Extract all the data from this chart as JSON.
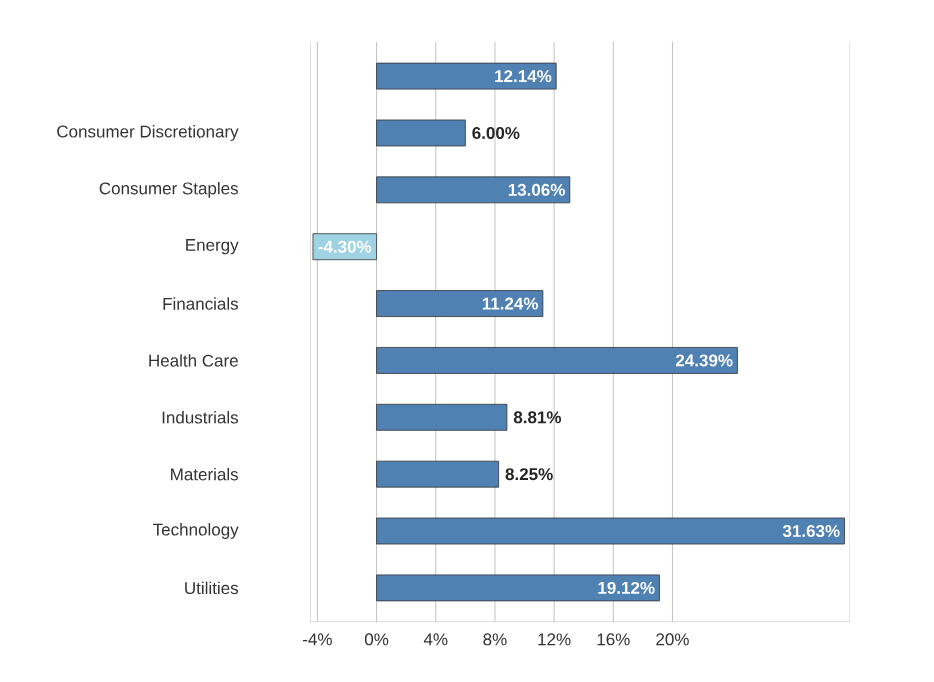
{
  "chart_data": {
    "type": "bar",
    "orientation": "horizontal",
    "categories": [
      null,
      "Consumer Discretionary",
      "Consumer Staples",
      "Energy",
      "Financials",
      "Health Care",
      "Industrials",
      "Materials",
      "Technology",
      "Utilities"
    ],
    "values": [
      12.14,
      6.0,
      13.06,
      -4.3,
      11.24,
      24.39,
      8.81,
      8.25,
      31.63,
      19.12
    ],
    "value_labels": [
      "12.14%",
      "6.00%",
      "13.06%",
      "-4.30%",
      "11.24%",
      "24.39%",
      "8.81%",
      "8.25%",
      "31.63%",
      "19.12%"
    ],
    "colors": [
      "#4f81b3",
      "#4f81b3",
      "#4f81b3",
      "#9fd3e3",
      "#4f81b3",
      "#4f81b3",
      "#4f81b3",
      "#4f81b3",
      "#4f81b3",
      "#4f81b3"
    ],
    "xlim": [
      -4.5,
      32
    ],
    "xticks": [
      {
        "value": -4,
        "label": "-4%"
      },
      {
        "value": 0,
        "label": "0%"
      },
      {
        "value": 4,
        "label": "4%"
      },
      {
        "value": 8,
        "label": "8%"
      },
      {
        "value": 12,
        "label": "12%"
      },
      {
        "value": 16,
        "label": "16%"
      },
      {
        "value": 20,
        "label": "20%"
      }
    ],
    "grid": "x"
  }
}
